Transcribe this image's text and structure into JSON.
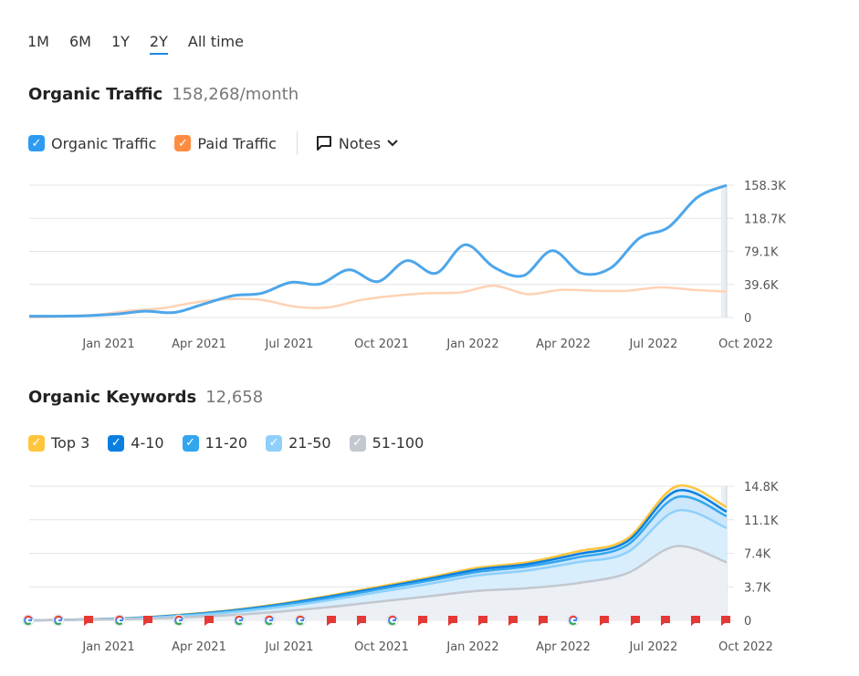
{
  "range": {
    "options": [
      "1M",
      "6M",
      "1Y",
      "2Y",
      "All time"
    ],
    "active": "2Y"
  },
  "traffic": {
    "title": "Organic Traffic",
    "value": "158,268/month",
    "legend": [
      {
        "label": "Organic Traffic",
        "color": "#2d9cf0"
      },
      {
        "label": "Paid Traffic",
        "color": "#ff8c42"
      }
    ],
    "notes_label": "Notes"
  },
  "keywords": {
    "title": "Organic Keywords",
    "value": "12,658",
    "legend": [
      {
        "label": "Top 3",
        "color": "#ffc53d"
      },
      {
        "label": "4-10",
        "color": "#0b7fe0"
      },
      {
        "label": "11-20",
        "color": "#33a6ee"
      },
      {
        "label": "21-50",
        "color": "#8fd0fb"
      },
      {
        "label": "51-100",
        "color": "#c2c7d0"
      }
    ]
  },
  "chart_data": [
    {
      "type": "line",
      "x_ticks": [
        "Jan 2021",
        "Apr 2021",
        "Jul 2021",
        "Oct 2021",
        "Jan 2022",
        "Apr 2022",
        "Jul 2022",
        "Oct 2022"
      ],
      "y_ticks": [
        "158.3K",
        "118.7K",
        "79.1K",
        "39.6K",
        "0"
      ],
      "ylim": [
        0,
        158300
      ],
      "series": [
        {
          "name": "Organic Traffic",
          "color": "#4da6ea",
          "values": [
            1500,
            1500,
            2200,
            4000,
            7500,
            6000,
            16000,
            26000,
            29000,
            42000,
            40000,
            57000,
            43000,
            68000,
            53000,
            87000,
            60000,
            50000,
            80000,
            53000,
            59000,
            95000,
            108000,
            144000,
            158300
          ]
        },
        {
          "name": "Paid Traffic",
          "color": "#ffd2b5",
          "values": [
            0,
            1000,
            3000,
            8000,
            11000,
            18000,
            22000,
            21000,
            13000,
            12000,
            21000,
            26000,
            29000,
            30000,
            38000,
            28000,
            33000,
            32000,
            32000,
            36000,
            33000,
            31000
          ]
        }
      ]
    },
    {
      "type": "area",
      "x_ticks": [
        "Jan 2021",
        "Apr 2021",
        "Jul 2021",
        "Oct 2021",
        "Jan 2022",
        "Apr 2022",
        "Jul 2022",
        "Oct 2022"
      ],
      "y_ticks": [
        "14.8K",
        "11.1K",
        "7.4K",
        "3.7K",
        "0"
      ],
      "ylim": [
        0,
        14800
      ],
      "series": [
        {
          "name": "Top 3",
          "color": "#ffc53d",
          "values": [
            0,
            100,
            250,
            600,
            1100,
            1800,
            2700,
            3700,
            4700,
            5800,
            6400,
            7600,
            9000,
            14800,
            12500
          ]
        },
        {
          "name": "4-10",
          "color": "#0b7fe0",
          "values": [
            0,
            90,
            230,
            560,
            1050,
            1720,
            2600,
            3550,
            4550,
            5600,
            6200,
            7300,
            8700,
            14300,
            12000
          ]
        },
        {
          "name": "11-20",
          "color": "#33a6ee",
          "values": [
            0,
            80,
            210,
            520,
            980,
            1620,
            2450,
            3400,
            4350,
            5350,
            5950,
            6950,
            8300,
            13600,
            11500
          ]
        },
        {
          "name": "21-50",
          "color": "#8fd0fb",
          "values": [
            0,
            70,
            180,
            450,
            860,
            1450,
            2200,
            3100,
            4000,
            4950,
            5500,
            6400,
            7500,
            12100,
            10200
          ]
        },
        {
          "name": "51-100",
          "color": "#c2c7d0",
          "values": [
            0,
            50,
            120,
            300,
            560,
            950,
            1450,
            2050,
            2650,
            3250,
            3550,
            4100,
            5200,
            8200,
            6400
          ]
        }
      ]
    }
  ]
}
